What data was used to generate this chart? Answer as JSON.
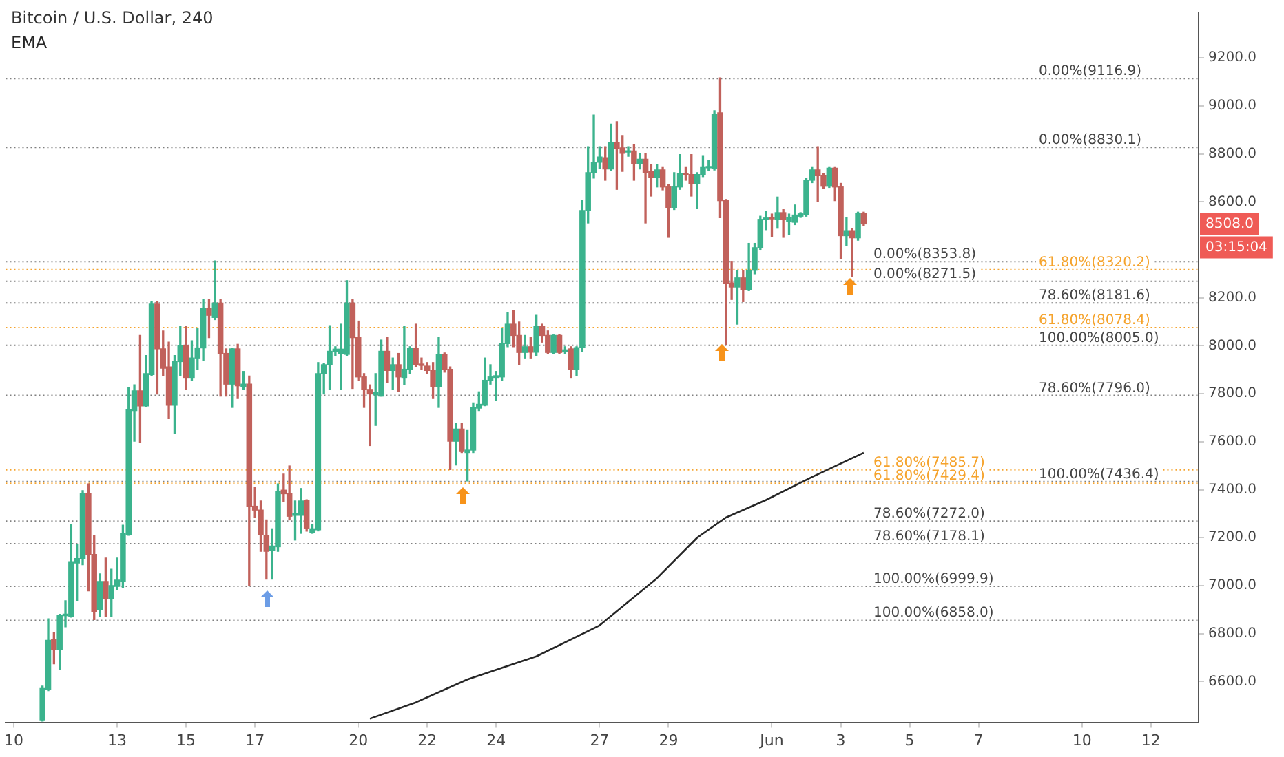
{
  "chart_data": {
    "type": "candlestick",
    "title": "Bitcoin / U.S. Dollar, 240",
    "legend": "top left",
    "x": [
      "--05-10T20:00",
      "--05-11T00:00",
      "--05-11T04:00",
      "--05-11T08:00",
      "--05-11T12:00",
      "--05-11T16:00",
      "--05-11T20:00",
      "--05-12T00:00",
      "--05-12T04:00",
      "--05-12T08:00",
      "--05-12T12:00",
      "--05-12T16:00",
      "--05-12T20:00",
      "--05-13T00:00",
      "--05-13T04:00",
      "--05-13T08:00",
      "--05-13T12:00",
      "--05-13T16:00",
      "--05-13T20:00",
      "--05-14T00:00",
      "--05-14T04:00",
      "--05-14T08:00",
      "--05-14T12:00",
      "--05-14T16:00",
      "--05-14T20:00",
      "--05-15T00:00",
      "--05-15T04:00",
      "--05-15T08:00",
      "--05-15T12:00",
      "--05-15T16:00",
      "--05-15T20:00",
      "--05-16T00:00",
      "--05-16T04:00",
      "--05-16T08:00",
      "--05-16T12:00",
      "--05-16T16:00",
      "--05-16T20:00",
      "--05-17T00:00",
      "--05-17T04:00",
      "--05-17T08:00",
      "--05-17T12:00",
      "--05-17T16:00",
      "--05-17T20:00",
      "--05-18T00:00",
      "--05-18T04:00",
      "--05-18T08:00",
      "--05-18T12:00",
      "--05-18T16:00",
      "--05-18T20:00",
      "--05-19T00:00",
      "--05-19T04:00",
      "--05-19T08:00",
      "--05-19T12:00",
      "--05-19T16:00",
      "--05-19T20:00",
      "--05-20T00:00",
      "--05-20T04:00",
      "--05-20T08:00",
      "--05-20T12:00",
      "--05-20T16:00",
      "--05-20T20:00",
      "--05-21T00:00",
      "--05-21T04:00",
      "--05-21T08:00",
      "--05-21T12:00",
      "--05-21T16:00",
      "--05-21T20:00",
      "--05-22T00:00",
      "--05-22T04:00",
      "--05-22T08:00",
      "--05-22T12:00",
      "--05-22T16:00",
      "--05-22T20:00",
      "--05-23T00:00",
      "--05-23T04:00",
      "--05-23T08:00",
      "--05-23T12:00",
      "--05-23T16:00",
      "--05-23T20:00",
      "--05-24T00:00",
      "--05-24T04:00",
      "--05-24T08:00",
      "--05-24T12:00",
      "--05-24T16:00",
      "--05-24T20:00",
      "--05-25T00:00",
      "--05-25T04:00",
      "--05-25T08:00",
      "--05-25T12:00",
      "--05-25T16:00",
      "--05-25T20:00",
      "--05-26T00:00",
      "--05-26T04:00",
      "--05-26T08:00",
      "--05-26T12:00",
      "--05-26T16:00",
      "--05-26T20:00",
      "--05-27T00:00",
      "--05-27T04:00",
      "--05-27T08:00",
      "--05-27T12:00",
      "--05-27T16:00",
      "--05-27T20:00",
      "--05-28T00:00",
      "--05-28T04:00",
      "--05-28T08:00",
      "--05-28T12:00",
      "--05-28T16:00",
      "--05-28T20:00",
      "--05-29T00:00",
      "--05-29T04:00",
      "--05-29T08:00",
      "--05-29T12:00",
      "--05-29T16:00",
      "--05-29T20:00",
      "--05-30T00:00",
      "--05-30T04:00",
      "--05-30T08:00",
      "--05-30T12:00",
      "--05-30T16:00",
      "--05-30T20:00",
      "--05-31T00:00",
      "--05-31T04:00",
      "--05-31T08:00",
      "--05-31T12:00",
      "--05-31T16:00",
      "--05-31T20:00",
      "--06-01T00:00",
      "--06-01T04:00",
      "--06-01T08:00",
      "--06-01T12:00",
      "--06-01T16:00",
      "--06-01T20:00",
      "--06-02T00:00",
      "--06-02T04:00",
      "--06-02T08:00",
      "--06-02T12:00",
      "--06-02T16:00",
      "--06-02T20:00",
      "--06-03T00:00",
      "--06-03T04:00",
      "--06-03T08:00",
      "--06-03T12:00",
      "--06-03T16:00"
    ],
    "ohlc": [
      [
        6440,
        6581,
        6435,
        6571
      ],
      [
        6566,
        6862,
        6562,
        6772
      ],
      [
        6777,
        6806,
        6674,
        6734
      ],
      [
        6734,
        6880,
        6652,
        6877
      ],
      [
        6875,
        6937,
        6828,
        6880
      ],
      [
        6871,
        7256,
        6868,
        7100
      ],
      [
        7094,
        7171,
        6937,
        7113
      ],
      [
        7113,
        7396,
        7087,
        7383
      ],
      [
        7383,
        7424,
        6978,
        7130
      ],
      [
        7130,
        7209,
        6858,
        6890
      ],
      [
        6900,
        7049,
        6871,
        7017
      ],
      [
        7017,
        7115,
        6870,
        6946
      ],
      [
        6946,
        7068,
        6870,
        7000
      ],
      [
        6997,
        7115,
        6984,
        7023
      ],
      [
        7019,
        7252,
        6993,
        7218
      ],
      [
        7214,
        7827,
        7210,
        7734
      ],
      [
        7730,
        7837,
        7602,
        7812
      ],
      [
        7812,
        8043,
        7597,
        7749
      ],
      [
        7749,
        7959,
        7745,
        7884
      ],
      [
        7880,
        8184,
        7874,
        8174
      ],
      [
        8174,
        8184,
        7799,
        7987
      ],
      [
        7987,
        8062,
        7874,
        7906
      ],
      [
        7912,
        8015,
        7696,
        7752
      ],
      [
        7752,
        7959,
        7634,
        7934
      ],
      [
        7934,
        8081,
        7874,
        8002
      ],
      [
        8002,
        8081,
        7818,
        7865
      ],
      [
        7865,
        8021,
        7855,
        7949
      ],
      [
        7949,
        8071,
        7902,
        7991
      ],
      [
        7991,
        8193,
        7940,
        8155
      ],
      [
        8155,
        8193,
        8034,
        8127
      ],
      [
        8118,
        8353.8,
        8109,
        8178
      ],
      [
        8178,
        8193,
        7790,
        7968
      ],
      [
        7968,
        7987,
        7790,
        7840
      ],
      [
        7840,
        7990,
        7743,
        7987
      ],
      [
        7987,
        8006,
        7780,
        7833
      ],
      [
        7830,
        7893,
        7818,
        7840
      ],
      [
        7840,
        7874,
        6999.9,
        7331
      ],
      [
        7331,
        7409,
        7284,
        7315
      ],
      [
        7315,
        7353,
        7143,
        7214
      ],
      [
        7208,
        7274,
        7027,
        7143
      ],
      [
        7147,
        7237,
        7027,
        7165
      ],
      [
        7162,
        7424,
        7143,
        7392
      ],
      [
        7398,
        7465,
        7349,
        7383
      ],
      [
        7383,
        7499,
        7274,
        7289
      ],
      [
        7293,
        7353,
        7190,
        7300
      ],
      [
        7293,
        7405,
        7218,
        7353
      ],
      [
        7355,
        7358,
        7227,
        7240
      ],
      [
        7222,
        7255,
        7218,
        7237
      ],
      [
        7233,
        7930,
        7228,
        7884
      ],
      [
        7884,
        7927,
        7799,
        7921
      ],
      [
        7921,
        8084,
        7818,
        7977
      ],
      [
        7977,
        7996,
        7960,
        7986
      ],
      [
        7968,
        8090,
        7818,
        7986
      ],
      [
        7964,
        8271.5,
        7960,
        8178
      ],
      [
        8178,
        8193,
        7822,
        8034
      ],
      [
        8034,
        8103,
        7856,
        7870
      ],
      [
        7870,
        7884,
        7743,
        7818
      ],
      [
        7818,
        7837,
        7584,
        7799
      ],
      [
        7796,
        7884,
        7668,
        7805
      ],
      [
        7790,
        8024,
        7790,
        7977
      ],
      [
        7977,
        8034,
        7846,
        7897
      ],
      [
        7897,
        7949,
        7818,
        7921
      ],
      [
        7921,
        7968,
        7809,
        7870
      ],
      [
        7865,
        8080,
        7837,
        7902
      ],
      [
        7902,
        7996,
        7884,
        7990
      ],
      [
        7990,
        8090,
        7912,
        7921
      ],
      [
        7921,
        7949,
        7902,
        7918
      ],
      [
        7915,
        7930,
        7884,
        7897
      ],
      [
        7897,
        7930,
        7780,
        7830
      ],
      [
        7830,
        8034,
        7743,
        7964
      ],
      [
        7964,
        7970,
        7890,
        7902
      ],
      [
        7902,
        7912,
        7484,
        7602
      ],
      [
        7602,
        7677,
        7503,
        7653
      ],
      [
        7653,
        7677,
        7555,
        7559
      ],
      [
        7555,
        7647,
        7436.4,
        7565
      ],
      [
        7565,
        7762,
        7555,
        7743
      ],
      [
        7740,
        7808,
        7730,
        7756
      ],
      [
        7752,
        7949,
        7750,
        7856
      ],
      [
        7856,
        7921,
        7840,
        7870
      ],
      [
        7865,
        7893,
        7771,
        7875
      ],
      [
        7870,
        8071,
        7855,
        8009
      ],
      [
        8009,
        8137,
        7996,
        8090
      ],
      [
        8090,
        8146,
        7996,
        8043
      ],
      [
        8043,
        8099,
        7921,
        7972
      ],
      [
        7972,
        8043,
        7949,
        7996
      ],
      [
        7996,
        8034,
        7949,
        7973
      ],
      [
        7973,
        8127,
        7958,
        8080
      ],
      [
        8080,
        8090,
        8015,
        8043
      ],
      [
        8043,
        8062,
        7968,
        7972
      ],
      [
        7972,
        8045,
        7968,
        8043
      ],
      [
        8043,
        8046,
        7968,
        7972
      ],
      [
        7975,
        7996,
        7968,
        7983
      ],
      [
        7987,
        7996,
        7865,
        7902
      ],
      [
        7902,
        7996,
        7874,
        7992
      ],
      [
        7992,
        8605,
        7977,
        8564
      ],
      [
        8564,
        8830,
        8512,
        8722
      ],
      [
        8722,
        8962,
        8699,
        8765
      ],
      [
        8765,
        8830,
        8740,
        8787
      ],
      [
        8784,
        8830,
        8690,
        8737
      ],
      [
        8737,
        8924,
        8730,
        8849
      ],
      [
        8849,
        8934,
        8652,
        8821
      ],
      [
        8825,
        8877,
        8727,
        8802
      ],
      [
        8807,
        8830,
        8790,
        8812
      ],
      [
        8812,
        8840,
        8690,
        8759
      ],
      [
        8759,
        8802,
        8737,
        8778
      ],
      [
        8778,
        8802,
        8512,
        8722
      ],
      [
        8727,
        8755,
        8624,
        8703
      ],
      [
        8703,
        8755,
        8662,
        8733
      ],
      [
        8733,
        8746,
        8650,
        8662
      ],
      [
        8662,
        8671,
        8452,
        8577
      ],
      [
        8577,
        8722,
        8568,
        8662
      ],
      [
        8662,
        8797,
        8652,
        8718
      ],
      [
        8718,
        8746,
        8690,
        8714
      ],
      [
        8714,
        8797,
        8624,
        8677
      ],
      [
        8677,
        8722,
        8572,
        8714
      ],
      [
        8714,
        8793,
        8705,
        8746
      ],
      [
        8742,
        8774,
        8730,
        8746
      ],
      [
        8740,
        8980,
        8733,
        8965
      ],
      [
        8971,
        9116.9,
        8534,
        8605
      ],
      [
        8605,
        8610,
        8005,
        8259
      ],
      [
        8262,
        8352,
        8193,
        8245
      ],
      [
        8245,
        8315,
        8090,
        8283
      ],
      [
        8283,
        8315,
        8184,
        8234
      ],
      [
        8234,
        8427,
        8230,
        8315
      ],
      [
        8315,
        8427,
        8300,
        8409
      ],
      [
        8409,
        8540,
        8399,
        8527
      ],
      [
        8527,
        8559,
        8484,
        8530
      ],
      [
        8530,
        8549,
        8455,
        8529
      ],
      [
        8527,
        8620,
        8490,
        8555
      ],
      [
        8555,
        8568,
        8452,
        8527
      ],
      [
        8517,
        8549,
        8465,
        8534
      ],
      [
        8515,
        8587,
        8505,
        8545
      ],
      [
        8540,
        8555,
        8535,
        8550
      ],
      [
        8546,
        8699,
        8540,
        8690
      ],
      [
        8690,
        8746,
        8680,
        8733
      ],
      [
        8733,
        8830.1,
        8602,
        8709
      ],
      [
        8709,
        8718,
        8655,
        8665
      ],
      [
        8665,
        8746,
        8660,
        8740
      ],
      [
        8740,
        8746,
        8605,
        8662
      ],
      [
        8662,
        8677,
        8362,
        8459
      ],
      [
        8459,
        8534,
        8418,
        8480
      ],
      [
        8480,
        8489,
        8290,
        8450
      ],
      [
        8450,
        8557,
        8440,
        8553
      ],
      [
        8553,
        8557,
        8500,
        8508
      ]
    ],
    "colors": [
      "#3bb38d",
      "#3bb38d",
      "#c1615b",
      "#3bb38d",
      "#3bb38d",
      "#3bb38d",
      "#3bb38d",
      "#3bb38d",
      "#c1615b",
      "#c1615b",
      "#3bb38d",
      "#c1615b",
      "#3bb38d",
      "#3bb38d",
      "#3bb38d",
      "#3bb38d",
      "#3bb38d",
      "#c1615b",
      "#3bb38d",
      "#3bb38d",
      "#c1615b",
      "#c1615b",
      "#c1615b",
      "#3bb38d",
      "#3bb38d",
      "#c1615b",
      "#3bb38d",
      "#3bb38d",
      "#3bb38d",
      "#c1615b",
      "#3bb38d",
      "#c1615b",
      "#c1615b",
      "#3bb38d",
      "#c1615b",
      "#3bb38d",
      "#c1615b",
      "#c1615b",
      "#c1615b",
      "#c1615b",
      "#3bb38d",
      "#3bb38d",
      "#c1615b",
      "#c1615b",
      "#3bb38d",
      "#3bb38d",
      "#c1615b",
      "#3bb38d",
      "#3bb38d",
      "#3bb38d",
      "#3bb38d",
      "#3bb38d",
      "#3bb38d",
      "#3bb38d",
      "#c1615b",
      "#c1615b",
      "#c1615b",
      "#c1615b",
      "#3bb38d",
      "#3bb38d",
      "#c1615b",
      "#3bb38d",
      "#c1615b",
      "#3bb38d",
      "#3bb38d",
      "#c1615b",
      "#c1615b",
      "#c1615b",
      "#c1615b",
      "#3bb38d",
      "#c1615b",
      "#c1615b",
      "#3bb38d",
      "#c1615b",
      "#3bb38d",
      "#3bb38d",
      "#3bb38d",
      "#3bb38d",
      "#3bb38d",
      "#3bb38d",
      "#3bb38d",
      "#3bb38d",
      "#c1615b",
      "#c1615b",
      "#3bb38d",
      "#c1615b",
      "#3bb38d",
      "#c1615b",
      "#c1615b",
      "#3bb38d",
      "#c1615b",
      "#3bb38d",
      "#c1615b",
      "#3bb38d",
      "#3bb38d",
      "#3bb38d",
      "#3bb38d",
      "#3bb38d",
      "#c1615b",
      "#3bb38d",
      "#c1615b",
      "#c1615b",
      "#3bb38d",
      "#c1615b",
      "#3bb38d",
      "#c1615b",
      "#c1615b",
      "#3bb38d",
      "#c1615b",
      "#c1615b",
      "#3bb38d",
      "#3bb38d",
      "#c1615b",
      "#c1615b",
      "#3bb38d",
      "#3bb38d",
      "#3bb38d",
      "#3bb38d",
      "#c1615b",
      "#c1615b",
      "#c1615b",
      "#3bb38d",
      "#c1615b",
      "#3bb38d",
      "#3bb38d",
      "#3bb38d",
      "#3bb38d",
      "#c1615b",
      "#3bb38d",
      "#c1615b",
      "#3bb38d",
      "#3bb38d",
      "#3bb38d",
      "#3bb38d",
      "#3bb38d",
      "#c1615b",
      "#c1615b",
      "#3bb38d",
      "#c1615b",
      "#c1615b",
      "#3bb38d",
      "#c1615b",
      "#3bb38d",
      "#c1615b"
    ],
    "series": [
      {
        "name": "EMA",
        "type": "line",
        "color": "#262626",
        "x": [
          "--05-20T08:00",
          "--05-21T16:00",
          "--05-23T04:00",
          "--05-25T04:00",
          "--05-27T00:00",
          "--05-28T16:00",
          "--05-29T20:00",
          "--05-30T16:00",
          "--05-31T20:00",
          "--06-02T04:00",
          "--06-03T16:00"
        ],
        "values": [
          6445,
          6513,
          6609,
          6705,
          6834,
          7031,
          7200,
          7284,
          7357,
          7453,
          7554
        ]
      }
    ],
    "xlim": [
      "--05-09T18:28",
      "--06-13T09:14"
    ],
    "xticks": [
      {
        "value": "--05-10",
        "label": "10"
      },
      {
        "value": "--05-13",
        "label": "13"
      },
      {
        "value": "--05-15",
        "label": "15"
      },
      {
        "value": "--05-17",
        "label": "17"
      },
      {
        "value": "--05-20",
        "label": "20"
      },
      {
        "value": "--05-22",
        "label": "22"
      },
      {
        "value": "--05-24",
        "label": "24"
      },
      {
        "value": "--05-27",
        "label": "27"
      },
      {
        "value": "--05-29",
        "label": "29"
      },
      {
        "value": "--06-01",
        "label": "Jun"
      },
      {
        "value": "--06-03",
        "label": "3"
      },
      {
        "value": "--06-05",
        "label": "5"
      },
      {
        "value": "--06-07",
        "label": "7"
      },
      {
        "value": "--06-10",
        "label": "10"
      },
      {
        "value": "--06-12",
        "label": "12"
      }
    ],
    "ylim": [
      6430,
      9390
    ],
    "yticks": [
      {
        "value": 6600,
        "label": "6600.0"
      },
      {
        "value": 6800,
        "label": "6800.0"
      },
      {
        "value": 7000,
        "label": "7000.0"
      },
      {
        "value": 7200,
        "label": "7200.0"
      },
      {
        "value": 7400,
        "label": "7400.0"
      },
      {
        "value": 7600,
        "label": "7600.0"
      },
      {
        "value": 7800,
        "label": "7800.0"
      },
      {
        "value": 8000,
        "label": "8000.0"
      },
      {
        "value": 8200,
        "label": "8200.0"
      },
      {
        "value": 8600,
        "label": "8600.0"
      },
      {
        "value": 8800,
        "label": "8800.0"
      },
      {
        "value": 9000,
        "label": "9000.0"
      },
      {
        "value": 9200,
        "label": "9200.0"
      }
    ],
    "ref_lines": [
      {
        "axis": "y",
        "value": 8353.8,
        "label": "0.00%(8353.8)",
        "color": "#7f7f7f",
        "line_style": "dotted"
      },
      {
        "axis": "y",
        "value": 7429.4,
        "label": "61.80%(7429.4)",
        "color": "#f5a32c",
        "line_style": "dotted"
      },
      {
        "axis": "y",
        "value": 7178.1,
        "label": "78.60%(7178.1)",
        "color": "#7f7f7f",
        "line_style": "dotted"
      },
      {
        "axis": "y",
        "value": 6858.0,
        "label": "100.00%(6858.0)",
        "color": "#7f7f7f",
        "line_style": "dotted"
      },
      {
        "axis": "y",
        "value": 8271.5,
        "label": "0.00%(8271.5)",
        "color": "#7f7f7f",
        "line_style": "dotted"
      },
      {
        "axis": "y",
        "value": 7485.7,
        "label": "61.80%(7485.7)",
        "color": "#f5a32c",
        "line_style": "dotted"
      },
      {
        "axis": "y",
        "value": 7272.0,
        "label": "78.60%(7272.0)",
        "color": "#7f7f7f",
        "line_style": "dotted"
      },
      {
        "axis": "y",
        "value": 6999.9,
        "label": "100.00%(6999.9)",
        "color": "#7f7f7f",
        "line_style": "dotted"
      },
      {
        "axis": "y",
        "value": 9116.9,
        "label": "0.00%(9116.9)",
        "color": "#7f7f7f",
        "line_style": "dotted"
      },
      {
        "axis": "y",
        "value": 8078.4,
        "label": "61.80%(8078.4)",
        "color": "#f5a32c",
        "line_style": "dotted"
      },
      {
        "axis": "y",
        "value": 7796.0,
        "label": "78.60%(7796.0)",
        "color": "#7f7f7f",
        "line_style": "dotted"
      },
      {
        "axis": "y",
        "value": 7436.4,
        "label": "100.00%(7436.4)",
        "color": "#7f7f7f",
        "line_style": "dotted"
      },
      {
        "axis": "y",
        "value": 8830.1,
        "label": "0.00%(8830.1)",
        "color": "#7f7f7f",
        "line_style": "dotted"
      },
      {
        "axis": "y",
        "value": 8320.2,
        "label": "61.80%(8320.2)",
        "color": "#f5a32c",
        "line_style": "dotted"
      },
      {
        "axis": "y",
        "value": 8181.6,
        "label": "78.60%(8181.6)",
        "color": "#7f7f7f",
        "line_style": "dotted"
      },
      {
        "axis": "y",
        "value": 8005.0,
        "label": "100.00%(8005.0)",
        "color": "#7f7f7f",
        "line_style": "dotted"
      }
    ],
    "annotations": [
      {
        "text": "8508.0",
        "y": 8508
      },
      "03:15:04"
    ]
  }
}
